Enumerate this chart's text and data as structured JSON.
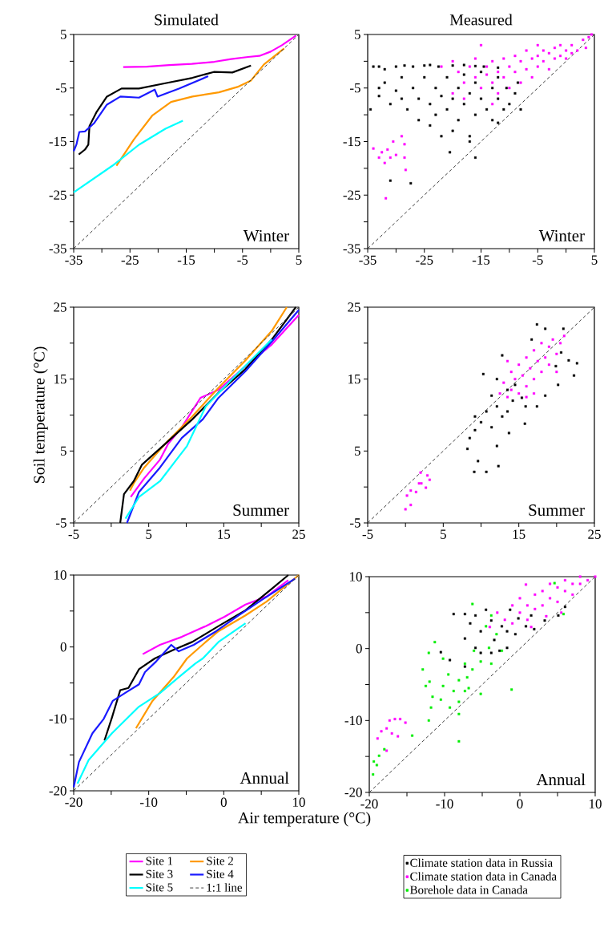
{
  "chart_data": [
    {
      "type": "line",
      "title": "Simulated",
      "xlim": [
        -35,
        5
      ],
      "ylim": [
        -35,
        5
      ],
      "xticks": [
        -35,
        {
          "value": -30,
          "label": null
        },
        -25,
        {
          "value": -20,
          "label": null
        },
        -15,
        {
          "value": -10,
          "label": null
        },
        -5,
        {
          "value": 0,
          "label": null
        },
        5
      ],
      "yticks": [
        -35,
        {
          "value": -30,
          "label": null
        },
        -25,
        {
          "value": -20,
          "label": null
        },
        -15,
        {
          "value": -10,
          "label": null
        },
        -5,
        {
          "value": 0,
          "label": null
        },
        5
      ],
      "annotations": [
        "Winter"
      ],
      "series": [
        {
          "color": "#ff00ff",
          "x": [
            -26.2,
            -22,
            -18,
            -14,
            -10,
            -7,
            -4,
            -2,
            0,
            2,
            4.5
          ],
          "values": [
            -1.1,
            -1.0,
            -0.7,
            -0.5,
            -0.1,
            0.4,
            0.8,
            1.0,
            1.8,
            3.0,
            4.8
          ]
        },
        {
          "color": "#ff9900",
          "x": [
            -27.4,
            -24.3,
            -21,
            -17.7,
            -13.9,
            -9.2,
            -5.9,
            -3.5,
            -1.2,
            2.4
          ],
          "values": [
            -19.5,
            -14.6,
            -10.1,
            -7.6,
            -6.6,
            -5.8,
            -4.8,
            -3.6,
            -0.6,
            2.4
          ]
        },
        {
          "color": "#000000",
          "x": [
            -34.1,
            -33,
            -32.4,
            -32.2,
            -31,
            -29.1,
            -26.5,
            -23.4,
            -18.7,
            -13.9,
            -10.1,
            -6.8,
            -3.5
          ],
          "values": [
            -17.4,
            -16.5,
            -15.6,
            -12.1,
            -9.6,
            -6.6,
            -5.1,
            -5.1,
            -4.1,
            -3.1,
            -2.0,
            -2.1,
            -0.8
          ]
        },
        {
          "color": "#1a1aff",
          "x": [
            -35,
            -34.5,
            -34,
            -33,
            -31.4,
            -29.1,
            -26.7,
            -23.4,
            -20.6,
            -20.1,
            -16.3,
            -11.1
          ],
          "values": [
            -16.8,
            -15.5,
            -13.2,
            -13.1,
            -11.6,
            -8.1,
            -6.6,
            -6.8,
            -5.3,
            -6.6,
            -5.1,
            -2.8
          ]
        },
        {
          "color": "#00ffff",
          "x": [
            -35,
            -28.1,
            -23.4,
            -18.7,
            -15.6
          ],
          "values": [
            -24.5,
            -19.5,
            -15.6,
            -12.6,
            -11.1
          ]
        },
        {
          "type": "line",
          "color": "#404040",
          "line_style": "dashed",
          "x": [
            -35,
            5
          ],
          "values": [
            -35,
            5
          ]
        }
      ]
    },
    {
      "type": "scatter",
      "title": "Measured",
      "xlim": [
        -35,
        5
      ],
      "ylim": [
        -35,
        5
      ],
      "xticks": [
        -35,
        {
          "value": -30,
          "label": null
        },
        -25,
        {
          "value": -20,
          "label": null
        },
        -15,
        {
          "value": -10,
          "label": null
        },
        -5,
        {
          "value": 0,
          "label": null
        },
        5
      ],
      "yticks": [
        -35,
        {
          "value": -30,
          "label": null
        },
        -25,
        {
          "value": -20,
          "label": null
        },
        -15,
        {
          "value": -10,
          "label": null
        },
        -5,
        {
          "value": 0,
          "label": null
        },
        5
      ],
      "annotations": [
        "Winter"
      ],
      "series": [
        {
          "color": "#000000",
          "marker": "square",
          "x": [
            -34,
            -33,
            -32,
            -30,
            -28.5,
            -27,
            -25,
            -24,
            -22.5,
            -20,
            -18,
            -16,
            -14.5,
            -12,
            -34.5,
            -33,
            -33,
            -32,
            -31,
            -30,
            -29,
            -29,
            -28,
            -27,
            -26,
            -26,
            -25,
            -24,
            -24,
            -23,
            -23,
            -22,
            -22,
            -21,
            -21,
            -20,
            -20,
            -19,
            -19,
            -18,
            -18,
            -17,
            -17,
            -16,
            -16,
            -15,
            -15,
            -14,
            -13,
            -13,
            -12,
            -12,
            -11,
            -10.5,
            -10,
            -9,
            -8.5,
            -8,
            -31,
            -27.4,
            -20.5,
            -17,
            -16,
            -12
          ],
          "values": [
            -1,
            -1,
            -1.5,
            -1,
            -0.8,
            -1,
            -0.8,
            -0.7,
            -1,
            -0.8,
            -0.7,
            -0.9,
            -1,
            -1.2,
            -9,
            -5,
            -6.5,
            -4,
            -8,
            -5.5,
            -7,
            -3,
            -9,
            -5,
            -11,
            -7,
            -3,
            -8,
            -12,
            -5,
            -10,
            -14,
            -6.5,
            -3,
            -9,
            -13,
            -7,
            -5,
            -11,
            -2.5,
            -8,
            -14,
            -6,
            -4,
            -10,
            -7,
            -2,
            -9,
            -5,
            -11,
            -3,
            -7,
            -9,
            -5,
            -8,
            -6,
            -4,
            -9,
            -22.3,
            -22.8,
            -17,
            -15,
            -18,
            -11.5
          ]
        },
        {
          "color": "#ff00ff",
          "marker": "square",
          "x": [
            -22,
            -20,
            -19,
            -18,
            -17,
            -16,
            -16,
            -15,
            -14,
            -14,
            -13,
            -13,
            -12,
            -12,
            -11,
            -11,
            -10,
            -10,
            -9,
            -9,
            -8,
            -8,
            -7,
            -7,
            -6,
            -6,
            -5,
            -5,
            -4,
            -4,
            -3,
            -3,
            -2,
            -2,
            -1,
            -1,
            0,
            0,
            1,
            1,
            2,
            3,
            3.5,
            4,
            4.5,
            -18,
            -15,
            -13,
            -5,
            -20,
            -34,
            -33,
            -32.5,
            -32,
            -31.5,
            -31,
            -30.5,
            -30,
            -29,
            -28.5,
            -28.3,
            -31.8,
            -28.5
          ],
          "values": [
            -1,
            0,
            -2,
            -4,
            -1,
            0.5,
            -3,
            -5,
            -1,
            -2.5,
            0,
            -4,
            -6,
            -2,
            0.5,
            -3,
            -1,
            -5,
            1,
            -2,
            -4,
            0,
            -1.5,
            2,
            0.5,
            -3,
            1,
            -1,
            2,
            0,
            1.5,
            -1.5,
            2.5,
            0.5,
            1,
            3,
            2,
            0.5,
            1.5,
            3,
            2,
            4,
            2.5,
            4.5,
            5,
            -7,
            3,
            -8,
            3,
            -6,
            -16.3,
            -18,
            -17,
            -19,
            -16.5,
            -18,
            -15,
            -17.5,
            -14,
            -18,
            -20.3,
            -25.6,
            -15.5
          ]
        },
        {
          "type": "line",
          "color": "#404040",
          "line_style": "dashed",
          "x": [
            -35,
            5
          ],
          "values": [
            -35,
            5
          ]
        }
      ]
    },
    {
      "type": "line",
      "ylabel": "Soil temperature (°C)",
      "xlim": [
        -5,
        25
      ],
      "ylim": [
        -5,
        25
      ],
      "xticks": [
        -5,
        {
          "value": 0,
          "label": null
        },
        5,
        {
          "value": 10,
          "label": null
        },
        15,
        {
          "value": 20,
          "label": null
        },
        25
      ],
      "yticks": [
        -5,
        {
          "value": 0,
          "label": null
        },
        5,
        {
          "value": 10,
          "label": null
        },
        15,
        {
          "value": 20,
          "label": null
        },
        25
      ],
      "annotations": [
        "Summer"
      ],
      "series": [
        {
          "color": "#ff00ff",
          "x": [
            2.6,
            4.4,
            6.5,
            7.6,
            9.4,
            11.9,
            14.3,
            17.9,
            21.4,
            25
          ],
          "values": [
            -1.4,
            1.2,
            3.8,
            6.0,
            8.3,
            12.4,
            13.5,
            16.8,
            19.8,
            23.9
          ]
        },
        {
          "color": "#ff9900",
          "x": [
            2.5,
            3.0,
            4.4,
            7.2,
            10.8,
            14.3,
            17.9,
            21.4,
            23.4
          ],
          "values": [
            -0.5,
            0.5,
            2.7,
            6.0,
            9.8,
            13.8,
            17.6,
            21.7,
            25
          ]
        },
        {
          "color": "#000000",
          "x": [
            1.2,
            1.7,
            3.0,
            4.1,
            7.2,
            10.8,
            14.3,
            17.9,
            21.4,
            24.6
          ],
          "values": [
            -5,
            -1.0,
            0.8,
            3.1,
            6.0,
            9.4,
            13.1,
            16.4,
            20.5,
            25
          ]
        },
        {
          "color": "#1a1aff",
          "x": [
            2.1,
            3.7,
            6.5,
            9.4,
            12.2,
            14.3,
            17.9,
            21.4,
            25
          ],
          "values": [
            -5,
            -0.7,
            2.7,
            6.8,
            9.4,
            12.4,
            16.1,
            20.2,
            24.6
          ]
        },
        {
          "color": "#00ffff",
          "x": [
            1.9,
            3.7,
            6.5,
            8.7,
            10.1,
            12.6,
            16.1,
            21.4
          ],
          "values": [
            -4.4,
            -1.4,
            0.8,
            3.8,
            5.7,
            11.2,
            15.0,
            20.5
          ]
        },
        {
          "type": "line",
          "color": "#404040",
          "line_style": "dashed",
          "x": [
            -5,
            25
          ],
          "values": [
            -5,
            25
          ]
        }
      ]
    },
    {
      "type": "scatter",
      "xlim": [
        -5,
        25
      ],
      "ylim": [
        -5,
        25
      ],
      "xticks": [
        -5,
        {
          "value": 0,
          "label": null
        },
        5,
        {
          "value": 10,
          "label": null
        },
        15,
        {
          "value": 20,
          "label": null
        },
        25
      ],
      "yticks": [
        -5,
        {
          "value": 0,
          "label": null
        },
        5,
        {
          "value": 10,
          "label": null
        },
        15,
        {
          "value": 20,
          "label": null
        },
        25
      ],
      "annotations": [
        "Summer"
      ],
      "series": [
        {
          "color": "#000000",
          "marker": "square",
          "x": [
            9.1,
            10.7,
            12.3,
            9.6,
            8.2,
            12.1,
            9.2,
            11.4,
            13.7,
            9.2,
            10.7,
            12.1,
            13.5,
            15.8,
            14.2,
            15.9,
            17.4,
            10.3,
            12.1,
            12.8,
            17.4,
            18.5,
            20.9,
            22.7,
            22.3,
            21.6,
            20.2,
            18.5,
            16.7,
            11.4,
            13.5,
            19.9,
            20.6,
            15.4,
            14.5,
            12.8,
            8.5,
            10
          ],
          "values": [
            2.1,
            2.1,
            2.9,
            3.6,
            5.3,
            5.7,
            7.9,
            8.3,
            7.5,
            9.8,
            10.5,
            11.2,
            10.5,
            8.8,
            12.0,
            11.2,
            11.2,
            15.7,
            15,
            18.3,
            22.6,
            22,
            22,
            17.2,
            15.5,
            17.6,
            14.2,
            12.7,
            20.5,
            12.7,
            13.5,
            16.8,
            18.7,
            12.4,
            14.2,
            9.8,
            6.8,
            9.0
          ]
        },
        {
          "color": "#ff00ff",
          "marker": "square",
          "x": [
            0,
            0.7,
            0.2,
            1.4,
            1.8,
            2.1,
            2.9,
            3.2,
            2.7,
            2.0,
            0.7,
            12.5,
            13,
            13.5,
            14,
            14,
            14.5,
            15,
            15,
            15.5,
            16,
            16,
            16.5,
            17,
            17,
            17.5,
            18,
            18,
            18.5,
            19,
            19,
            19.5,
            20,
            20.5,
            21,
            16,
            13.5,
            17,
            20
          ],
          "values": [
            -3.1,
            -2.5,
            -1.2,
            -0.7,
            0.5,
            0.5,
            1.6,
            1.0,
            -0.1,
            2.0,
            -0.5,
            13,
            14.5,
            12.5,
            16,
            13.5,
            15,
            17,
            13,
            15.5,
            18,
            14,
            16.5,
            19,
            15,
            17.5,
            20,
            16,
            18,
            19.5,
            17,
            20.5,
            18.5,
            20,
            21,
            12.5,
            17.5,
            13,
            16
          ]
        },
        {
          "type": "line",
          "color": "#404040",
          "line_style": "dashed",
          "x": [
            -5,
            25
          ],
          "values": [
            -5,
            25
          ]
        }
      ]
    },
    {
      "type": "line",
      "xlabel": "Air temperature (°C)",
      "legend": "bottom",
      "xlim": [
        -20,
        10
      ],
      "ylim": [
        -20,
        10
      ],
      "xticks": [
        -20,
        {
          "value": -15,
          "label": null
        },
        -10,
        {
          "value": -5,
          "label": null
        },
        0,
        {
          "value": 5,
          "label": null
        },
        10
      ],
      "yticks": [
        -20,
        {
          "value": -15,
          "label": null
        },
        -10,
        {
          "value": -5,
          "label": null
        },
        0,
        {
          "value": 5,
          "label": null
        },
        10
      ],
      "annotations": [
        "Annual"
      ],
      "series": [
        {
          "name": "Site 1",
          "color": "#ff00ff",
          "x": [
            -10.8,
            -8.5,
            -5.6,
            -2.4,
            0.1,
            2.9,
            5.7,
            8.6
          ],
          "values": [
            -1.0,
            0.3,
            1.4,
            2.9,
            4.2,
            5.9,
            7.0,
            9.3
          ]
        },
        {
          "name": "Site 2",
          "color": "#ff9900",
          "x": [
            -11.7,
            -9.5,
            -6.7,
            -4.9,
            -2.4,
            -0.7,
            2.9,
            5.7,
            10
          ],
          "values": [
            -11.3,
            -7.5,
            -4.2,
            -1.6,
            0.7,
            2.2,
            4.4,
            6.3,
            10
          ]
        },
        {
          "name": "Site 3",
          "color": "#000000",
          "x": [
            -15.9,
            -14.9,
            -13.8,
            -12.7,
            -11.3,
            -9.2,
            -6.7,
            -4.2,
            -0.7,
            2.9,
            6.4,
            8.6
          ],
          "values": [
            -13,
            -9.8,
            -6.0,
            -5.7,
            -3.1,
            -1.6,
            -0.4,
            0.7,
            2.9,
            5.1,
            8.1,
            10
          ]
        },
        {
          "name": "Site 4",
          "color": "#1a1aff",
          "x": [
            -20,
            -19.3,
            -17.5,
            -16,
            -14.8,
            -13,
            -11.3,
            -10.5,
            -9,
            -7,
            -6,
            -4,
            -1,
            2,
            5,
            8,
            9.5
          ],
          "values": [
            -19.5,
            -16,
            -12,
            -10,
            -7.5,
            -6.3,
            -5.2,
            -3.5,
            -2,
            0.3,
            -0.6,
            0.3,
            2.2,
            4.4,
            6.5,
            8.5,
            9.5
          ]
        },
        {
          "name": "Site 5",
          "color": "#00ffff",
          "x": [
            -19.5,
            -18,
            -14.9,
            -11.3,
            -8.5,
            -6,
            -3.8,
            -2.8,
            -0.7,
            2.9
          ],
          "values": [
            -19,
            -15.7,
            -12,
            -8.3,
            -6.4,
            -4.2,
            -2.3,
            -1.6,
            0.7,
            3.3
          ]
        },
        {
          "type": "line",
          "name": "1:1 line",
          "color": "#404040",
          "line_style": "dashed",
          "x": [
            -20,
            10
          ],
          "values": [
            -20,
            10
          ]
        }
      ]
    },
    {
      "type": "scatter",
      "legend": "bottom",
      "xlim": [
        -20,
        10
      ],
      "ylim": [
        -20,
        10
      ],
      "xticks": [
        -20,
        {
          "value": -15,
          "label": null
        },
        -10,
        {
          "value": -5,
          "label": null
        },
        0,
        {
          "value": 5,
          "label": null
        },
        10
      ],
      "yticks": [
        -20,
        {
          "value": -15,
          "label": null
        },
        -10,
        {
          "value": -5,
          "label": null
        },
        0,
        {
          "value": 5,
          "label": null
        },
        10
      ],
      "annotations": [
        "Annual"
      ],
      "series": [
        {
          "name": "Climate station data in Russia",
          "color": "#000000",
          "marker": "square",
          "x": [
            -10.5,
            -9.3,
            -8.8,
            -7.3,
            -7.3,
            -6.6,
            -5.9,
            -5.2,
            -4.5,
            -3.8,
            -3.4,
            -2.7,
            -2.4,
            -1.7,
            -1.3,
            -0.6,
            -0.2,
            0.8,
            1.5,
            1.9,
            3.3,
            5.1,
            6,
            -5.2,
            -3.8,
            -5.9,
            -1.7,
            -7.3
          ],
          "values": [
            -0.5,
            -1.6,
            4.8,
            1.4,
            -2.5,
            3.5,
            4.6,
            2.4,
            5.4,
            3.9,
            1.2,
            -0.3,
            3.1,
            0.1,
            5.4,
            2.0,
            4.2,
            3.1,
            4.6,
            2.7,
            3.9,
            4.6,
            5.8,
            -0.6,
            -0.6,
            0.1,
            2.4,
            4.8
          ]
        },
        {
          "name": "Climate station data in Canada",
          "color": "#ff00ff",
          "marker": "square",
          "x": [
            -3,
            -2,
            -1,
            -1,
            0,
            0,
            1,
            1,
            2,
            2,
            3,
            3,
            3.5,
            4,
            4,
            5,
            5,
            5.5,
            6,
            6,
            7,
            7,
            8,
            8,
            9,
            10,
            -4,
            1.5,
            0.8,
            -18.9,
            -17.3,
            -16.6,
            -15.9,
            -15.2,
            -17.7,
            -17,
            -16.2,
            -18.4,
            -17.7
          ],
          "values": [
            5,
            4,
            6,
            3.5,
            5,
            7,
            4,
            6,
            5.5,
            7.5,
            6,
            8,
            4.5,
            7,
            9,
            6.5,
            8.5,
            5,
            8,
            9.5,
            7.5,
            9,
            9,
            10,
            9.5,
            10,
            3,
            3,
            8.9,
            -12.5,
            -10,
            -9.8,
            -9.8,
            -10.3,
            -11.1,
            -11.8,
            -12.2,
            -11.5,
            -14.2
          ]
        },
        {
          "name": "Borehole data in Canada",
          "color": "#00ee00",
          "marker": "square",
          "x": [
            -6.3,
            -11.3,
            -12.1,
            -12.9,
            -12,
            -12.5,
            -11.6,
            -11.8,
            -12.1,
            -10.5,
            -10.2,
            -9.5,
            -9.3,
            -8.8,
            -8.1,
            -8.1,
            -8.1,
            -7.3,
            -7.3,
            -7,
            -6.3,
            -6.1,
            -5.2,
            -5.2,
            -4.1,
            -3.8,
            -3.1,
            -2.4,
            -1.1,
            -8.1,
            -14.3,
            -18,
            -18.7,
            -19.4,
            5.8,
            4.6,
            -4.5,
            -3.8,
            -10.2,
            -6.8,
            -19.5,
            -19
          ],
          "values": [
            6.2,
            0.9,
            -0.6,
            -2.9,
            -4.6,
            -5.2,
            -6.7,
            -8.2,
            -10,
            -7.1,
            -5.2,
            -3.6,
            -8.2,
            -5.9,
            -4.4,
            -7.4,
            -9.1,
            -2.1,
            -5.9,
            -4,
            -2.9,
            -0.3,
            -6.3,
            -1.8,
            0.1,
            -2.1,
            2.0,
            -0.3,
            -5.7,
            -12.9,
            -12.1,
            -14,
            -14.9,
            -15.7,
            4.8,
            9.1,
            3.1,
            4.6,
            -1.4,
            -5.5,
            -17.5,
            -16.2
          ]
        },
        {
          "type": "line",
          "color": "#404040",
          "line_style": "dashed",
          "x": [
            -20,
            10
          ],
          "values": [
            -20,
            10
          ]
        }
      ]
    }
  ]
}
